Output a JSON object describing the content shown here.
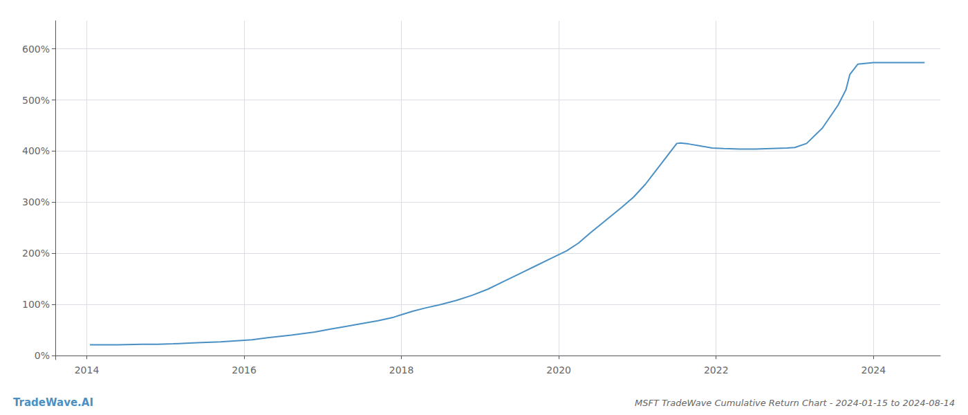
{
  "chart_data": {
    "type": "line",
    "title": "MSFT TradeWave Cumulative Return Chart - 2024-01-15 to 2024-08-14",
    "annotations": [
      "TradeWave.AI"
    ],
    "color": "#4a90c4",
    "grid": true,
    "xlim": [
      2013.6,
      2024.85
    ],
    "ylim": [
      -0.08,
      6.55
    ],
    "xticks": [
      2014,
      2016,
      2018,
      2020,
      2022,
      2024
    ],
    "yticks": [
      {
        "value": 0.0,
        "label": "0%"
      },
      {
        "value": 1.0,
        "label": "100%"
      },
      {
        "value": 2.0,
        "label": "200%"
      },
      {
        "value": 3.0,
        "label": "300%"
      },
      {
        "value": 4.0,
        "label": "400%"
      },
      {
        "value": 5.0,
        "label": "500%"
      },
      {
        "value": 6.0,
        "label": "600%"
      }
    ],
    "x": [
      2014.04,
      2014.15,
      2014.4,
      2014.7,
      2014.9,
      2015.1,
      2015.4,
      2015.7,
      2015.9,
      2016.1,
      2016.3,
      2016.6,
      2016.9,
      2017.1,
      2017.4,
      2017.7,
      2017.9,
      2018.0,
      2018.15,
      2018.3,
      2018.5,
      2018.7,
      2018.9,
      2019.1,
      2019.3,
      2019.5,
      2019.7,
      2019.9,
      2020.1,
      2020.25,
      2020.4,
      2020.6,
      2020.8,
      2020.95,
      2021.1,
      2021.25,
      2021.4,
      2021.5,
      2021.55,
      2021.65,
      2021.8,
      2021.95,
      2022.1,
      2022.3,
      2022.5,
      2022.7,
      2022.9,
      2023.0,
      2023.15,
      2023.35,
      2023.55,
      2023.65,
      2023.7,
      2023.8,
      2024.0,
      2024.2,
      2024.4,
      2024.6,
      2024.65
    ],
    "values": [
      0.21,
      0.21,
      0.21,
      0.22,
      0.22,
      0.23,
      0.25,
      0.27,
      0.29,
      0.31,
      0.35,
      0.4,
      0.46,
      0.52,
      0.6,
      0.68,
      0.75,
      0.8,
      0.87,
      0.93,
      1.0,
      1.08,
      1.18,
      1.3,
      1.45,
      1.6,
      1.75,
      1.9,
      2.05,
      2.2,
      2.4,
      2.65,
      2.9,
      3.1,
      3.35,
      3.65,
      3.95,
      4.15,
      4.16,
      4.14,
      4.1,
      4.06,
      4.05,
      4.04,
      4.04,
      4.05,
      4.06,
      4.07,
      4.15,
      4.45,
      4.9,
      5.2,
      5.5,
      5.7,
      5.73,
      5.73,
      5.73,
      5.73,
      5.73
    ]
  }
}
